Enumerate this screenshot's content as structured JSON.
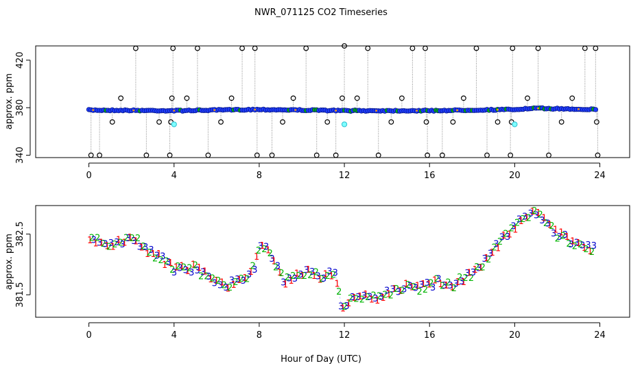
{
  "title": "NWR_071125  CO2 Timeseries",
  "xlabel": "Hour of Day (UTC)",
  "chart_data": [
    {
      "type": "scatter",
      "ylabel": "approx. ppm",
      "xlim": [
        -2.5,
        25.4
      ],
      "ylim": [
        338,
        432
      ],
      "x_ticks": [
        0,
        4,
        8,
        12,
        16,
        20,
        24
      ],
      "y_ticks": [
        340,
        380,
        420
      ],
      "baseline": [
        {
          "x": 0,
          "y": 378
        },
        {
          "x": 4,
          "y": 377.5
        },
        {
          "x": 8,
          "y": 378.5
        },
        {
          "x": 12,
          "y": 377.5
        },
        {
          "x": 16,
          "y": 377.5
        },
        {
          "x": 20,
          "y": 378.5
        },
        {
          "x": 21,
          "y": 379.5
        },
        {
          "x": 23.8,
          "y": 378.5
        }
      ],
      "outliers": [
        {
          "x": 0.1,
          "y": 340
        },
        {
          "x": 0.5,
          "y": 340
        },
        {
          "x": 1.1,
          "y": 368
        },
        {
          "x": 1.5,
          "y": 388
        },
        {
          "x": 2.2,
          "y": 430
        },
        {
          "x": 2.7,
          "y": 340
        },
        {
          "x": 3.3,
          "y": 368
        },
        {
          "x": 3.8,
          "y": 340
        },
        {
          "x": 3.85,
          "y": 368
        },
        {
          "x": 3.9,
          "y": 388
        },
        {
          "x": 3.95,
          "y": 430
        },
        {
          "x": 4.6,
          "y": 388
        },
        {
          "x": 5.1,
          "y": 430
        },
        {
          "x": 5.6,
          "y": 340
        },
        {
          "x": 6.2,
          "y": 368
        },
        {
          "x": 6.7,
          "y": 388
        },
        {
          "x": 7.2,
          "y": 430
        },
        {
          "x": 7.8,
          "y": 430
        },
        {
          "x": 7.9,
          "y": 340
        },
        {
          "x": 8.6,
          "y": 340
        },
        {
          "x": 9.1,
          "y": 368
        },
        {
          "x": 9.6,
          "y": 388
        },
        {
          "x": 10.2,
          "y": 430
        },
        {
          "x": 10.7,
          "y": 340
        },
        {
          "x": 11.2,
          "y": 368
        },
        {
          "x": 11.6,
          "y": 340
        },
        {
          "x": 11.9,
          "y": 388
        },
        {
          "x": 12.0,
          "y": 432
        },
        {
          "x": 12.6,
          "y": 388
        },
        {
          "x": 13.1,
          "y": 430
        },
        {
          "x": 13.6,
          "y": 340
        },
        {
          "x": 14.2,
          "y": 368
        },
        {
          "x": 14.7,
          "y": 388
        },
        {
          "x": 15.2,
          "y": 430
        },
        {
          "x": 15.8,
          "y": 430
        },
        {
          "x": 15.85,
          "y": 368
        },
        {
          "x": 15.9,
          "y": 340
        },
        {
          "x": 16.6,
          "y": 340
        },
        {
          "x": 17.1,
          "y": 368
        },
        {
          "x": 17.6,
          "y": 388
        },
        {
          "x": 18.2,
          "y": 430
        },
        {
          "x": 18.7,
          "y": 340
        },
        {
          "x": 19.2,
          "y": 368
        },
        {
          "x": 19.8,
          "y": 340
        },
        {
          "x": 19.85,
          "y": 368
        },
        {
          "x": 19.9,
          "y": 430
        },
        {
          "x": 20.6,
          "y": 388
        },
        {
          "x": 21.1,
          "y": 430
        },
        {
          "x": 21.6,
          "y": 340
        },
        {
          "x": 22.2,
          "y": 368
        },
        {
          "x": 22.7,
          "y": 388
        },
        {
          "x": 23.3,
          "y": 430
        },
        {
          "x": 23.8,
          "y": 430
        },
        {
          "x": 23.85,
          "y": 368
        },
        {
          "x": 23.9,
          "y": 340
        }
      ],
      "cyan_points": [
        {
          "x": 4.0,
          "y": 366
        },
        {
          "x": 12.0,
          "y": 366
        },
        {
          "x": 20.0,
          "y": 366
        }
      ]
    },
    {
      "type": "scatter",
      "ylabel": "approx. ppm",
      "xlim": [
        -2.5,
        25.4
      ],
      "ylim": [
        381.13,
        382.97
      ],
      "x_ticks": [
        0,
        4,
        8,
        12,
        16,
        20,
        24
      ],
      "y_ticks": [
        381.5,
        382.5
      ],
      "symbols": [
        "1",
        "2",
        "3"
      ],
      "symbol_colors": [
        "#ff0000",
        "#00b400",
        "#0000cd"
      ],
      "trend": [
        {
          "x": 0.0,
          "y": 382.48
        },
        {
          "x": 0.3,
          "y": 382.42
        },
        {
          "x": 0.6,
          "y": 382.36
        },
        {
          "x": 1.0,
          "y": 382.33
        },
        {
          "x": 1.5,
          "y": 382.38
        },
        {
          "x": 2.0,
          "y": 382.45
        },
        {
          "x": 2.3,
          "y": 382.4
        },
        {
          "x": 2.6,
          "y": 382.28
        },
        {
          "x": 3.0,
          "y": 382.18
        },
        {
          "x": 3.5,
          "y": 382.08
        },
        {
          "x": 4.0,
          "y": 381.92
        },
        {
          "x": 4.5,
          "y": 381.92
        },
        {
          "x": 5.0,
          "y": 381.95
        },
        {
          "x": 5.5,
          "y": 381.82
        },
        {
          "x": 6.0,
          "y": 381.68
        },
        {
          "x": 6.5,
          "y": 381.66
        },
        {
          "x": 7.0,
          "y": 381.76
        },
        {
          "x": 7.5,
          "y": 381.82
        },
        {
          "x": 7.8,
          "y": 381.98
        },
        {
          "x": 8.1,
          "y": 382.32
        },
        {
          "x": 8.5,
          "y": 382.2
        },
        {
          "x": 8.9,
          "y": 381.9
        },
        {
          "x": 9.2,
          "y": 381.72
        },
        {
          "x": 9.6,
          "y": 381.78
        },
        {
          "x": 10.2,
          "y": 381.88
        },
        {
          "x": 10.8,
          "y": 381.82
        },
        {
          "x": 11.3,
          "y": 381.85
        },
        {
          "x": 11.6,
          "y": 381.8
        },
        {
          "x": 11.9,
          "y": 381.25
        },
        {
          "x": 12.3,
          "y": 381.45
        },
        {
          "x": 12.8,
          "y": 381.48
        },
        {
          "x": 13.5,
          "y": 381.46
        },
        {
          "x": 14.0,
          "y": 381.52
        },
        {
          "x": 14.5,
          "y": 381.58
        },
        {
          "x": 15.0,
          "y": 381.65
        },
        {
          "x": 15.5,
          "y": 381.62
        },
        {
          "x": 16.0,
          "y": 381.68
        },
        {
          "x": 16.5,
          "y": 381.72
        },
        {
          "x": 17.0,
          "y": 381.62
        },
        {
          "x": 17.5,
          "y": 381.75
        },
        {
          "x": 18.0,
          "y": 381.85
        },
        {
          "x": 18.5,
          "y": 382.0
        },
        {
          "x": 19.0,
          "y": 382.25
        },
        {
          "x": 19.5,
          "y": 382.45
        },
        {
          "x": 20.0,
          "y": 382.62
        },
        {
          "x": 20.4,
          "y": 382.78
        },
        {
          "x": 20.8,
          "y": 382.85
        },
        {
          "x": 21.2,
          "y": 382.78
        },
        {
          "x": 21.6,
          "y": 382.65
        },
        {
          "x": 22.0,
          "y": 382.5
        },
        {
          "x": 22.5,
          "y": 382.42
        },
        {
          "x": 23.0,
          "y": 382.35
        },
        {
          "x": 23.5,
          "y": 382.28
        },
        {
          "x": 23.8,
          "y": 382.26
        }
      ]
    }
  ]
}
